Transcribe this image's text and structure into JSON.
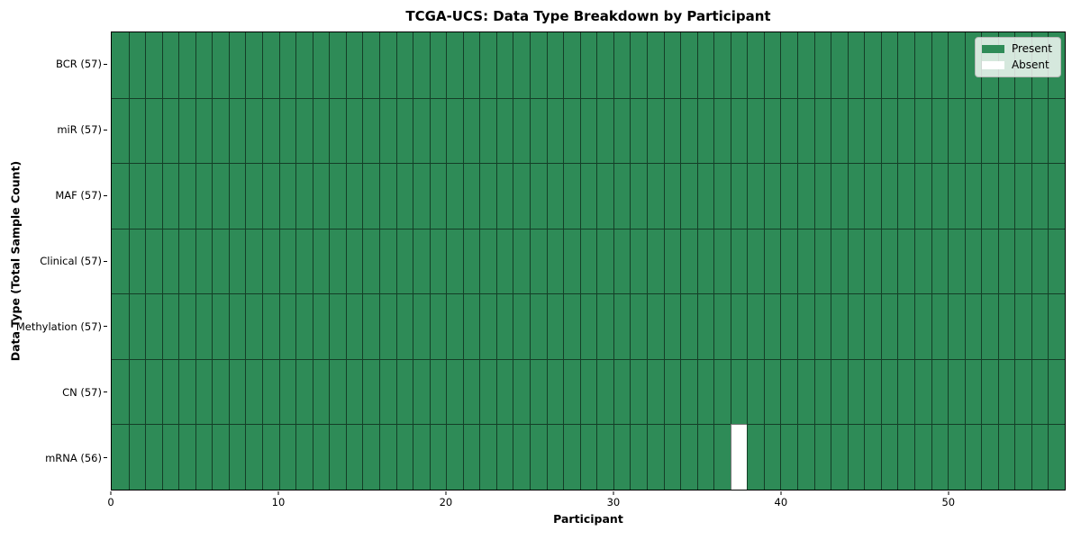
{
  "title": "TCGA-UCS: Data Type Breakdown by Participant",
  "xlabel": "Participant",
  "ylabel": "Data Type (Total Sample Count)",
  "colors": {
    "present": "#2e8b57",
    "absent": "#ffffff",
    "cell_edge": "rgba(0,0,0,0.55)",
    "legend_border": "#b7b7b7"
  },
  "chart_data": {
    "type": "heatmap",
    "title": "TCGA-UCS: Data Type Breakdown by Participant",
    "xlabel": "Participant",
    "ylabel": "Data Type (Total Sample Count)",
    "n_participants": 57,
    "x_ticks": [
      0,
      10,
      20,
      30,
      40,
      50
    ],
    "x_range": [
      0,
      57
    ],
    "grid": "cell-borders",
    "legend_position": "upper right",
    "rows": [
      {
        "data_type": "BCR",
        "label": "BCR (57)",
        "count": 57,
        "absent_participants": []
      },
      {
        "data_type": "miR",
        "label": "miR (57)",
        "count": 57,
        "absent_participants": []
      },
      {
        "data_type": "MAF",
        "label": "MAF (57)",
        "count": 57,
        "absent_participants": []
      },
      {
        "data_type": "Clinical",
        "label": "Clinical (57)",
        "count": 57,
        "absent_participants": []
      },
      {
        "data_type": "Methylation",
        "label": "Methylation (57)",
        "count": 57,
        "absent_participants": []
      },
      {
        "data_type": "CN",
        "label": "CN (57)",
        "count": 57,
        "absent_participants": []
      },
      {
        "data_type": "mRNA",
        "label": "mRNA (56)",
        "count": 56,
        "absent_participants": [
          37
        ]
      }
    ],
    "legend": [
      {
        "label": "Present",
        "color": "#2e8b57"
      },
      {
        "label": "Absent",
        "color": "#ffffff"
      }
    ]
  }
}
